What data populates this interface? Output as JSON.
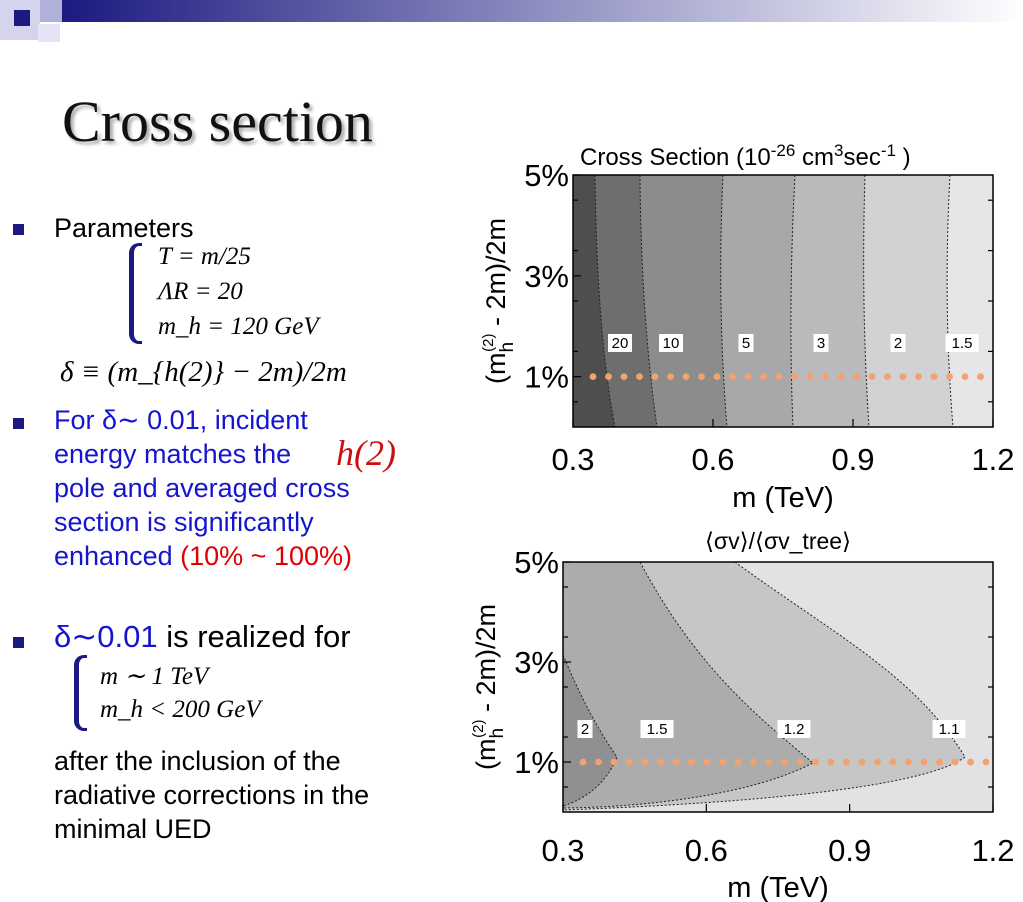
{
  "slide": {
    "title": "Cross section",
    "params_label": "Parameters",
    "param_T": "T = m/25",
    "param_LR": "ΛR = 20",
    "param_mh": "m_h = 120 GeV",
    "delta_def": "δ ≡ (m_{h(2)} − 2m)/2m",
    "b2_text": [
      "For δ∼ 0.01, incident",
      "energy matches the",
      "pole and averaged cross",
      "section is significantly"
    ],
    "b2_enh": "enhanced",
    "b2_pct": "(10% ~ 100%)",
    "h2_symbol": "h(2)",
    "b3_delta": "δ∼0.01",
    "b3_rest": " is realized for",
    "cond_m": "m ∼ 1 TeV",
    "cond_mh": "m_h < 200 GeV",
    "tail": [
      "after the inclusion of the",
      "radiative corrections in the",
      "minimal UED"
    ]
  },
  "colors": {
    "bullet": "#1a1a80",
    "blue": "#1515d0",
    "red": "#e00000",
    "dots": "#f4a070"
  },
  "chart_data": [
    {
      "type": "heatmap",
      "title": "Cross Section (10^-26 cm^3 sec^-1 )",
      "xlabel": "m (TeV)",
      "ylabel": "(m_h^(2) - 2m)/2m",
      "xlim": [
        0.3,
        1.2
      ],
      "ylim": [
        "0%",
        "5%"
      ],
      "x_ticks": [
        "0.3",
        "0.6",
        "0.9",
        "1.2"
      ],
      "y_ticks": [
        "1%",
        "3%",
        "5%"
      ],
      "contour_labels": [
        "20",
        "10",
        "5",
        "3",
        "2",
        "1.5"
      ],
      "highlight": {
        "y": 0.01
      }
    },
    {
      "type": "heatmap",
      "title": "⟨σv⟩/⟨σv_tree⟩",
      "xlabel": "m (TeV)",
      "ylabel": "(m_h^(2) - 2m)/2m",
      "xlim": [
        0.3,
        1.2
      ],
      "ylim": [
        "0%",
        "5%"
      ],
      "x_ticks": [
        "0.3",
        "0.6",
        "0.9",
        "1.2"
      ],
      "y_ticks": [
        "1%",
        "3%",
        "5%"
      ],
      "contour_labels": [
        "2",
        "1.5",
        "1.2",
        "1.1"
      ],
      "highlight": {
        "y": 0.01
      }
    }
  ]
}
